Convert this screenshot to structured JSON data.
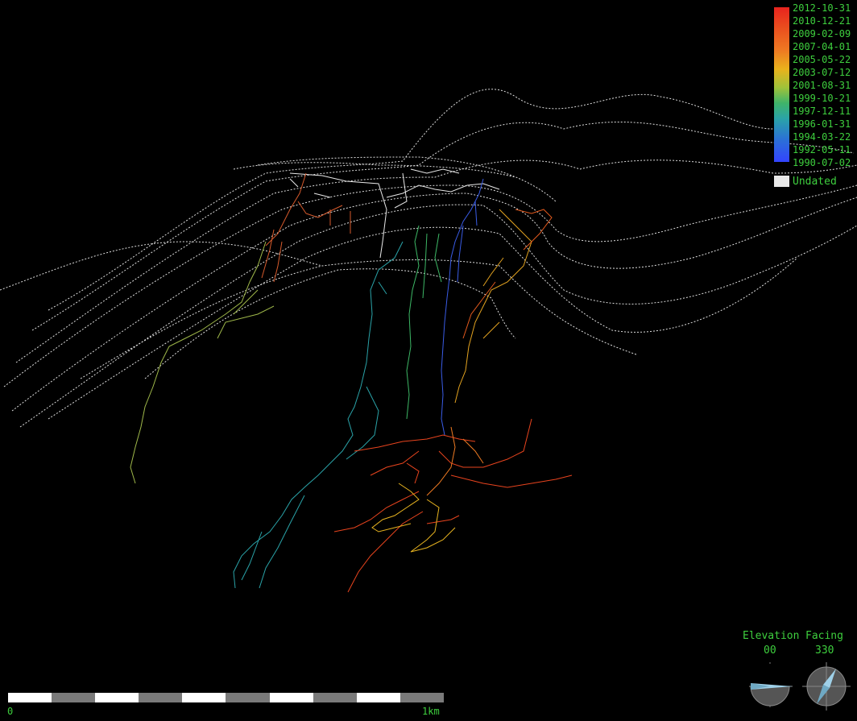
{
  "legend": {
    "dates": [
      "2012-10-31",
      "2010-12-21",
      "2009-02-09",
      "2007-04-01",
      "2005-05-22",
      "2003-07-12",
      "2001-08-31",
      "1999-10-21",
      "1997-12-11",
      "1996-01-31",
      "1994-03-22",
      "1992-05-11",
      "1990-07-02"
    ],
    "undated_label": "Undated",
    "gradient_top": "#e8231e",
    "gradient_bottom": "#3344ff",
    "undated_color": "#e8e8e8"
  },
  "scalebar": {
    "start_label": "0",
    "end_label": "1km"
  },
  "orientation": {
    "elevation_label": "Elevation",
    "facing_label": "Facing",
    "elevation_value": "00",
    "facing_value": "330"
  },
  "colors": {
    "text": "#3ecf3e",
    "background": "#000000",
    "surface_lines": "#ffffff"
  }
}
